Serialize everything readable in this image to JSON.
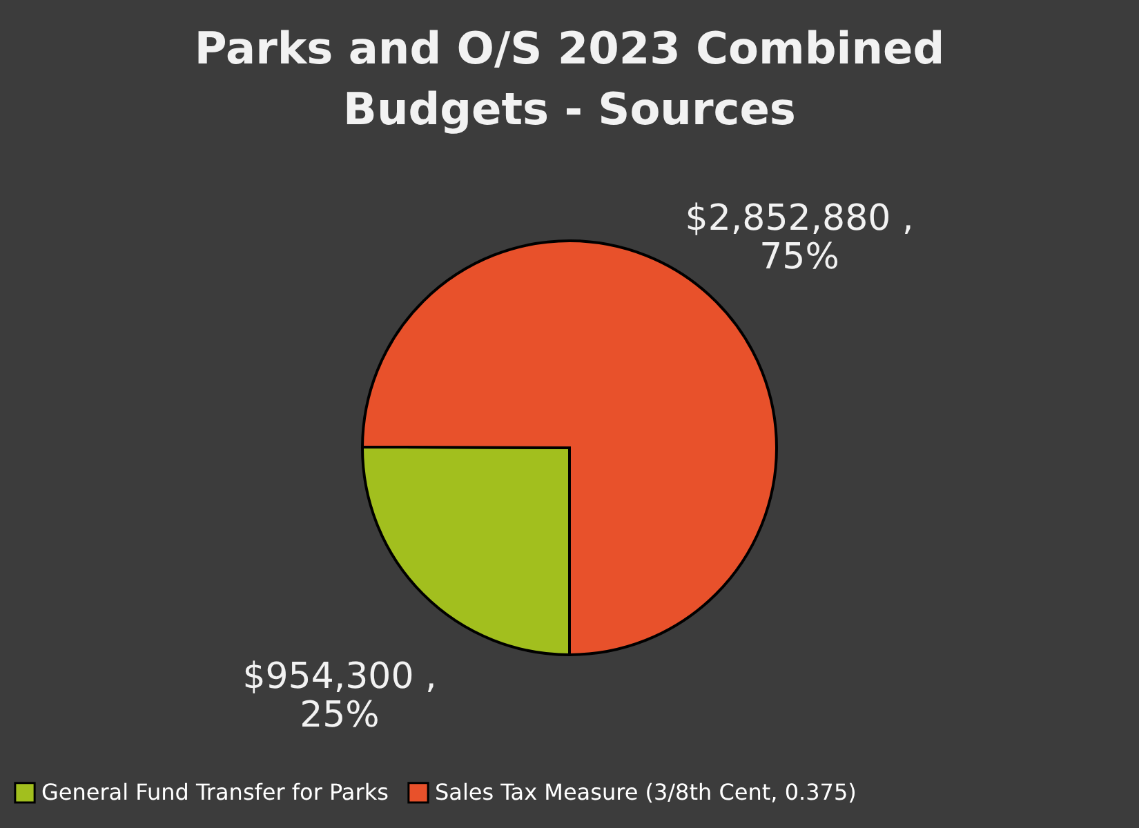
{
  "chart_data": {
    "type": "pie",
    "title": [
      "Parks and O/S 2023 Combined",
      "Budgets - Sources"
    ],
    "categories": [
      "General Fund Transfer for Parks",
      "Sales Tax Measure (3/8th Cent, 0.375)"
    ],
    "values": [
      954300,
      2852880
    ],
    "colors": [
      "#a2bf1e",
      "#e8512b"
    ],
    "value_labels": [
      "$954,300 ,\n25%",
      "$2,852,880 ,\n75%"
    ],
    "legend": "bottom"
  }
}
